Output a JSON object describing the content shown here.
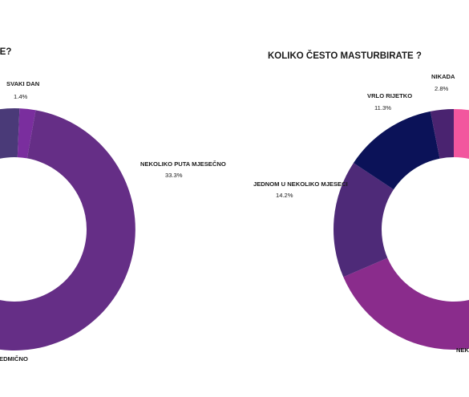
{
  "chart_data": [
    {
      "type": "pie",
      "title": "SE?",
      "colors": [
        "#4a3a78",
        "#7a2e9e",
        "#652e86",
        "#3d2b7a"
      ],
      "slices": [
        {
          "label": "",
          "value": 8.6
        },
        {
          "label": "SVAKI DAN",
          "value": 1.4,
          "display": "1.4%"
        },
        {
          "label": "NEKOLIKO PUTA MJESEČNO",
          "value": 33.3,
          "display": "33.3%"
        },
        {
          "label": "EDMIČNO",
          "value": 22.0
        }
      ]
    },
    {
      "type": "pie",
      "title": "KOLIKO ČESTO MASTURBIRATE ?",
      "colors": [
        "#f2579e",
        "#8a2c8c",
        "#4e2a78",
        "#0b1258",
        "#4a2370"
      ],
      "slices": [
        {
          "label": "",
          "value": 4.0
        },
        {
          "label": "NEKO",
          "value": 57.6
        },
        {
          "label": "JEDNOM U NEKOLIKO MJESECI",
          "value": 14.2,
          "display": "14.2%"
        },
        {
          "label": "VRLO RIJETKO",
          "value": 11.3,
          "display": "11.3%"
        },
        {
          "label": "NIKADA",
          "value": 2.8,
          "display": "2.8%"
        }
      ]
    }
  ]
}
